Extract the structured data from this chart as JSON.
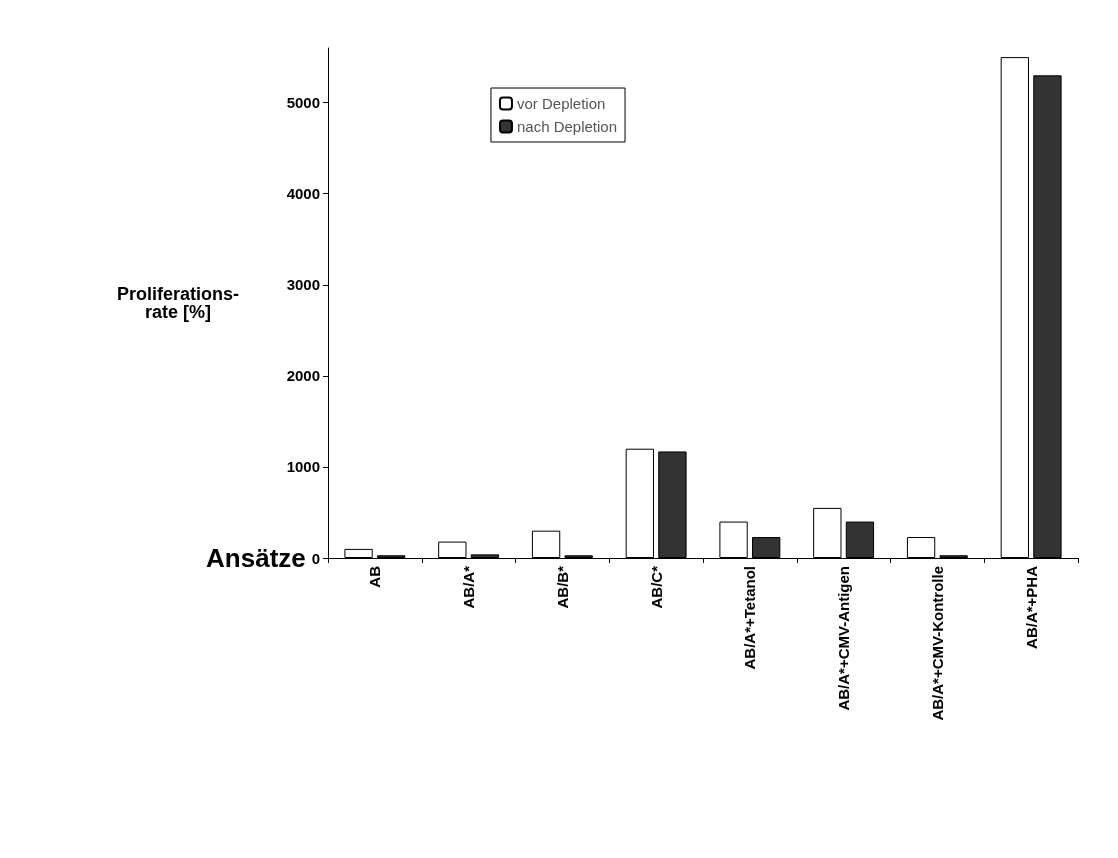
{
  "chart_data": {
    "type": "bar",
    "xlabel": "Ansätze",
    "ylabel": "Proliferations-\nrate [%]",
    "categories": [
      "AB",
      "AB/A*",
      "AB/B*",
      "AB/C*",
      "AB/A*+Tetanol",
      "AB/A*+CMV-Antigen",
      "AB/A*+CMV-Kontrolle",
      "AB/A*+PHA"
    ],
    "series": [
      {
        "name": "vor Depletion",
        "color": "#ffffff",
        "values": [
          100,
          180,
          300,
          1200,
          400,
          550,
          230,
          5500
        ]
      },
      {
        "name": "nach Depletion",
        "color": "#333333",
        "values": [
          30,
          40,
          30,
          1170,
          230,
          400,
          30,
          5300
        ]
      }
    ],
    "ylim": [
      0,
      5600
    ],
    "yticks": [
      0,
      1000,
      2000,
      3000,
      4000,
      5000
    ],
    "grid": false,
    "legend": "top"
  }
}
